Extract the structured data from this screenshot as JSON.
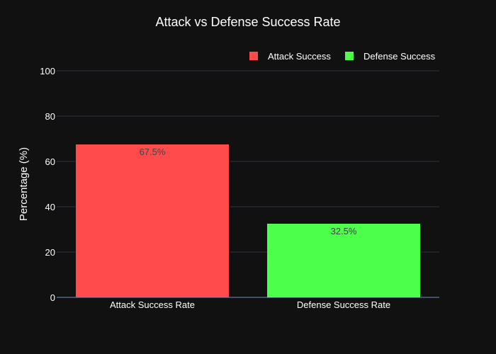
{
  "chart_data": {
    "type": "bar",
    "title": "Attack vs Defense Success Rate",
    "categories": [
      "Attack Success Rate",
      "Defense Success Rate"
    ],
    "series": [
      {
        "name": "Attack Success",
        "category": "Attack Success Rate",
        "value": 67.5,
        "label": "67.5%",
        "color": "#ff4b4b"
      },
      {
        "name": "Defense Success",
        "category": "Defense Success Rate",
        "value": 32.5,
        "label": "32.5%",
        "color": "#4bff4b"
      }
    ],
    "values": [
      67.5,
      32.5
    ],
    "xlabel": "",
    "ylabel": "Percentage (%)",
    "ylim": [
      0,
      100
    ],
    "yticks": [
      "0",
      "20",
      "40",
      "60",
      "80",
      "100"
    ],
    "grid": true,
    "legend_position": "top-right"
  }
}
